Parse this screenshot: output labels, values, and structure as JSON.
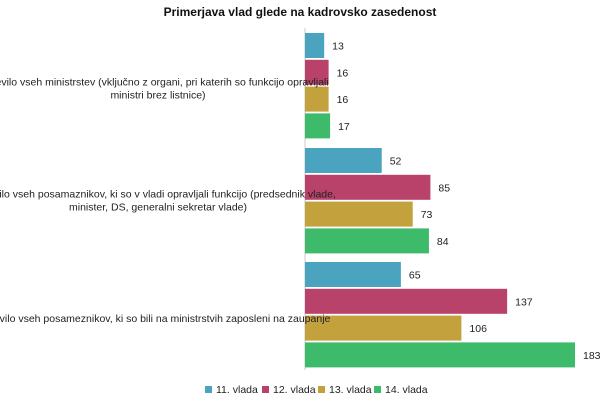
{
  "chart_data": {
    "type": "bar",
    "orientation": "horizontal",
    "title": "Primerjava vlad glede na kadrovsko zasedenost",
    "categories": [
      [
        "število vseh ministrstev (vključno z organi, pri katerih so funkcijo opravljali",
        "ministri brez listnice)"
      ],
      [
        "število vseh posamaznikov, ki so v vladi opravljali funkcijo (predsednik vlade,",
        "minister, DS, generalni sekretar vlade)"
      ],
      [
        "število vseh posameznikov, ki so bili na ministrstvih zaposleni na zaupanje"
      ]
    ],
    "series": [
      {
        "name": "11. vlada",
        "color": "#4aa3bf",
        "values": [
          13,
          52,
          65
        ]
      },
      {
        "name": "12. vlada",
        "color": "#b8426a",
        "values": [
          16,
          85,
          137
        ]
      },
      {
        "name": "13. vlada",
        "color": "#c3a23e",
        "values": [
          16,
          73,
          106
        ]
      },
      {
        "name": "14. vlada",
        "color": "#3dbb6a",
        "values": [
          17,
          84,
          183
        ]
      }
    ],
    "xlim": [
      0,
      183
    ],
    "grid": false,
    "legend_position": "bottom"
  }
}
